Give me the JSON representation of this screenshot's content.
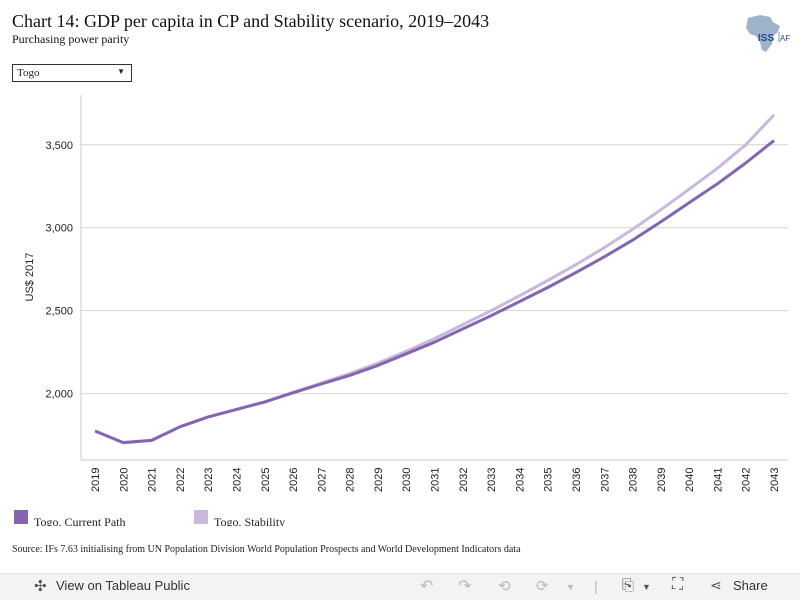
{
  "header": {
    "title": "Chart 14: GDP per capita in CP and Stability scenario, 2019–2043",
    "subtitle": "Purchasing power parity"
  },
  "logo": {
    "name": "iss-africa-logo",
    "text_iss": "ISS",
    "text_af": "AF",
    "color_map": "#9fb3cc",
    "color_text": "#1f4e8c"
  },
  "filter": {
    "selected": "Togo"
  },
  "chart_data": {
    "type": "line",
    "x": [
      2019,
      2020,
      2021,
      2022,
      2023,
      2024,
      2025,
      2026,
      2027,
      2028,
      2029,
      2030,
      2031,
      2032,
      2033,
      2034,
      2035,
      2036,
      2037,
      2038,
      2039,
      2040,
      2041,
      2042,
      2043
    ],
    "xtick_labels": [
      "2019",
      "2020",
      "2021",
      "2022",
      "2023",
      "2024",
      "2025",
      "2026",
      "2027",
      "2028",
      "2029",
      "2030",
      "2031",
      "2032",
      "2033",
      "2034",
      "2035",
      "2036",
      "2037",
      "2038",
      "2039",
      "2040",
      "2041",
      "2042",
      "2043"
    ],
    "series": [
      {
        "name": "Togo, Current Path",
        "color": "#8466b0",
        "values": [
          1775,
          1705,
          1718,
          1800,
          1860,
          1905,
          1950,
          2005,
          2058,
          2110,
          2170,
          2240,
          2310,
          2390,
          2470,
          2555,
          2640,
          2730,
          2825,
          2925,
          3035,
          3150,
          3265,
          3390,
          3525
        ]
      },
      {
        "name": "Togo, Stability",
        "color": "#c9b7dc",
        "values": [
          1775,
          1705,
          1718,
          1800,
          1860,
          1905,
          1950,
          2008,
          2064,
          2120,
          2184,
          2256,
          2332,
          2416,
          2500,
          2590,
          2682,
          2778,
          2880,
          2990,
          3108,
          3232,
          3358,
          3500,
          3680
        ]
      }
    ],
    "ylabel": "US$ 2017",
    "ylim": [
      1600,
      3800
    ],
    "yticks": [
      2000,
      2500,
      3000,
      3500
    ],
    "ytick_labels": [
      "2,000",
      "2,500",
      "3,000",
      "3,500"
    ],
    "grid": true,
    "legend_position": "bottom-left"
  },
  "source": "Source: IFs 7.63 initialising from UN Population Division World Population Prospects and World Development Indicators data",
  "toolbar": {
    "view_label": "View on Tableau Public",
    "share_label": "Share"
  }
}
